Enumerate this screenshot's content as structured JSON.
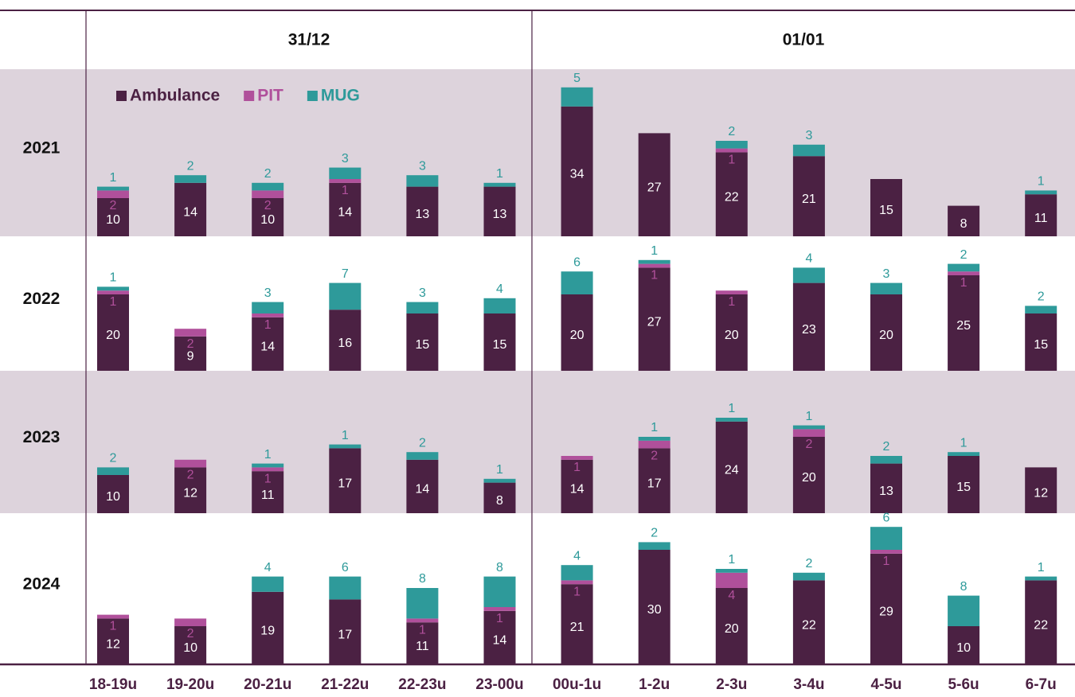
{
  "chart_data": {
    "type": "bar",
    "groups": [
      {
        "label": "31/12",
        "categories": [
          "18-19u",
          "19-20u",
          "20-21u",
          "21-22u",
          "22-23u",
          "23-00u"
        ]
      },
      {
        "label": "01/01",
        "categories": [
          "00u-1u",
          "1-2u",
          "2-3u",
          "3-4u",
          "4-5u",
          "5-6u",
          "6-7u"
        ]
      }
    ],
    "series": [
      {
        "name": "Ambulance",
        "color": "#4b2143"
      },
      {
        "name": "PIT",
        "color": "#b0509b"
      },
      {
        "name": "MUG",
        "color": "#2e9a9a"
      }
    ],
    "ylim": [
      0,
      40
    ],
    "panels": [
      {
        "label": "2021",
        "values": [
          [
            10,
            14,
            10,
            14,
            13,
            13,
            34,
            27,
            22,
            21,
            15,
            8,
            11
          ],
          [
            2,
            null,
            2,
            1,
            null,
            null,
            null,
            null,
            1,
            null,
            null,
            null,
            null
          ],
          [
            1,
            2,
            2,
            3,
            3,
            1,
            5,
            null,
            2,
            3,
            null,
            null,
            1
          ]
        ]
      },
      {
        "label": "2022",
        "values": [
          [
            20,
            9,
            14,
            16,
            15,
            15,
            20,
            27,
            20,
            23,
            20,
            25,
            15
          ],
          [
            1,
            2,
            1,
            null,
            null,
            null,
            null,
            1,
            1,
            null,
            null,
            1,
            null
          ],
          [
            1,
            null,
            3,
            7,
            3,
            4,
            6,
            1,
            null,
            4,
            3,
            2,
            2
          ]
        ]
      },
      {
        "label": "2023",
        "values": [
          [
            10,
            12,
            11,
            17,
            14,
            8,
            14,
            17,
            24,
            20,
            13,
            15,
            12
          ],
          [
            null,
            2,
            1,
            null,
            null,
            null,
            1,
            2,
            null,
            2,
            null,
            null,
            null
          ],
          [
            2,
            null,
            1,
            1,
            2,
            1,
            null,
            1,
            1,
            1,
            2,
            1,
            null
          ]
        ]
      },
      {
        "label": "2024",
        "values": [
          [
            12,
            10,
            19,
            17,
            11,
            14,
            21,
            30,
            20,
            22,
            29,
            10,
            22
          ],
          [
            1,
            2,
            null,
            null,
            1,
            1,
            1,
            null,
            4,
            null,
            1,
            null,
            null
          ],
          [
            null,
            null,
            4,
            6,
            8,
            8,
            4,
            2,
            1,
            2,
            6,
            8,
            1
          ]
        ]
      }
    ]
  }
}
